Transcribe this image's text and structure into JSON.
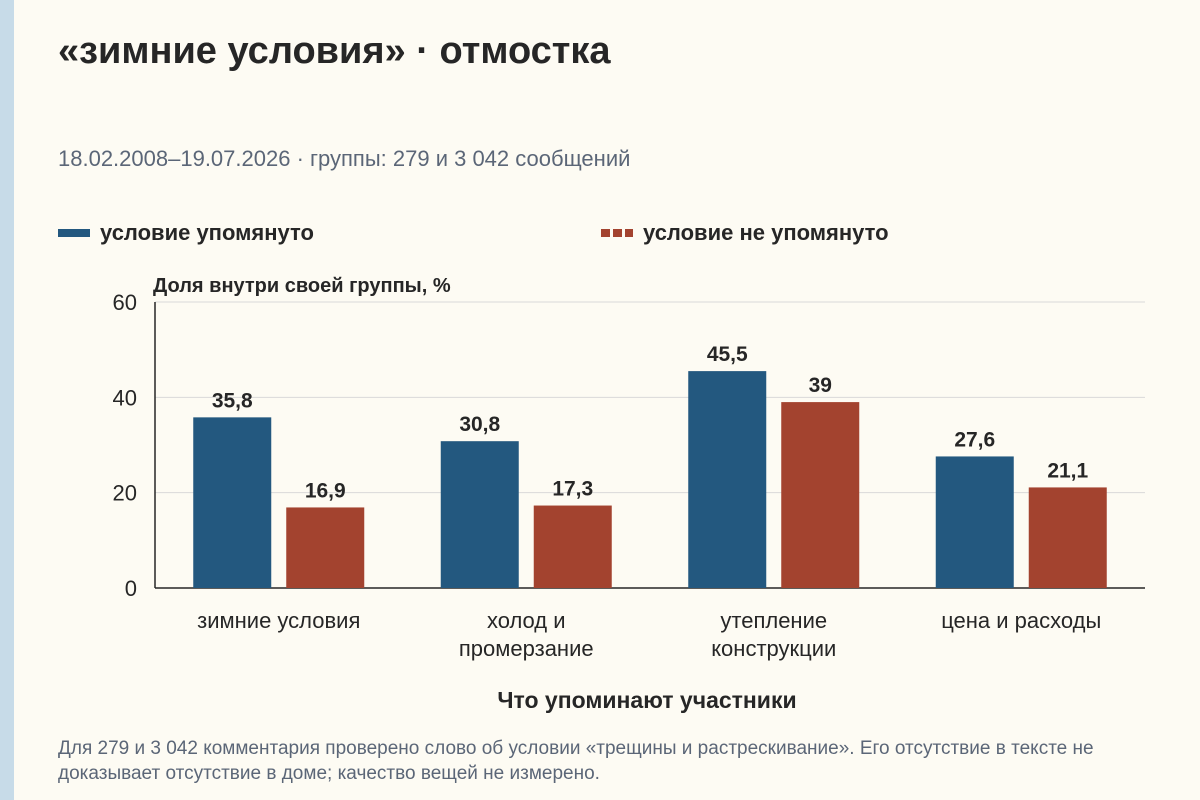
{
  "title": "«зимние условия» · отмостка",
  "subtitle": "18.02.2008–19.07.2026 · группы: 279 и 3 042 сообщений",
  "note": "Для 279 и 3 042 комментария проверено слово об условии «трещины и растрескивание». Его отсутствие в тексте не доказывает отсутствие в доме; качество вещей не измерено.",
  "colors": {
    "mentioned": "#23587f",
    "not_mentioned": "#a3432f",
    "grid": "#d9d9d9",
    "axis": "#262626"
  },
  "chart_data": {
    "type": "bar",
    "title": "«зимние условия» · отмостка",
    "xlabel": "Что упоминают участники",
    "ylabel": "Доля внутри своей группы, %",
    "ylim": [
      0,
      60
    ],
    "yticks": [
      0,
      20,
      40,
      60
    ],
    "grid": true,
    "legend_position": "top",
    "categories": [
      [
        "зимние условия"
      ],
      [
        "холод и",
        "промерзание"
      ],
      [
        "утепление",
        "конструкции"
      ],
      [
        "цена и расходы"
      ]
    ],
    "series": [
      {
        "name": "условие упомянуто",
        "values": [
          35.8,
          30.8,
          45.5,
          27.6
        ],
        "labels": [
          "35,8",
          "30,8",
          "45,5",
          "27,6"
        ]
      },
      {
        "name": "условие не упомянуто",
        "values": [
          16.9,
          17.3,
          39,
          21.1
        ],
        "labels": [
          "16,9",
          "17,3",
          "39",
          "21,1"
        ]
      }
    ]
  }
}
